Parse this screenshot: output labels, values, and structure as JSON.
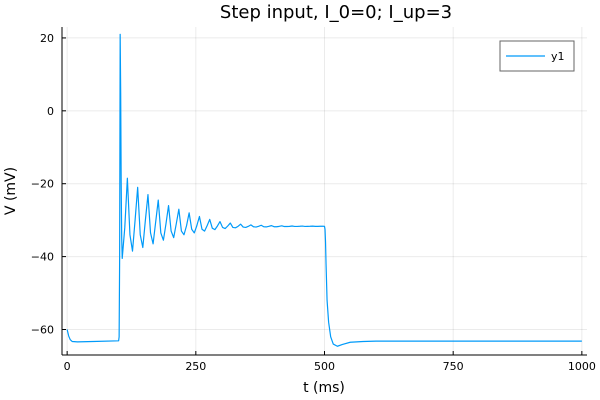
{
  "chart_data": {
    "type": "line",
    "title": "Step input, I_0=0; I_up=3",
    "xlabel": "t (ms)",
    "ylabel": "V (mV)",
    "xlim": [
      -10,
      1010
    ],
    "ylim": [
      -67,
      23
    ],
    "xticks": [
      0,
      250,
      500,
      750,
      1000
    ],
    "xtick_labels": [
      "0",
      "250",
      "500",
      "750",
      "1000"
    ],
    "yticks": [
      -60,
      -40,
      -20,
      0,
      20
    ],
    "ytick_labels": [
      "−60",
      "−40",
      "−20",
      "0",
      "20"
    ],
    "grid": true,
    "legend": {
      "position": "top-right",
      "entries": [
        "y1"
      ]
    },
    "series": [
      {
        "name": "y1",
        "color": "#009af9",
        "points": [
          [
            0,
            -60
          ],
          [
            3,
            -61.8
          ],
          [
            6,
            -62.8
          ],
          [
            10,
            -63.3
          ],
          [
            20,
            -63.4
          ],
          [
            50,
            -63.3
          ],
          [
            100,
            -63.1
          ],
          [
            101,
            -62
          ],
          [
            102,
            -40
          ],
          [
            103,
            21
          ],
          [
            104,
            5
          ],
          [
            105,
            -20
          ],
          [
            106,
            -35
          ],
          [
            107,
            -40.5
          ],
          [
            112,
            -32
          ],
          [
            117,
            -18.5
          ],
          [
            122,
            -34
          ],
          [
            127,
            -38.5
          ],
          [
            132,
            -30
          ],
          [
            137,
            -21
          ],
          [
            142,
            -34
          ],
          [
            147,
            -37.5
          ],
          [
            152,
            -30
          ],
          [
            157,
            -23
          ],
          [
            162,
            -33.5
          ],
          [
            167,
            -36.5
          ],
          [
            172,
            -30.5
          ],
          [
            177,
            -24.5
          ],
          [
            182,
            -33.5
          ],
          [
            187,
            -35.5
          ],
          [
            192,
            -31
          ],
          [
            197,
            -26
          ],
          [
            202,
            -33
          ],
          [
            207,
            -34.8
          ],
          [
            212,
            -31
          ],
          [
            217,
            -27
          ],
          [
            222,
            -33
          ],
          [
            227,
            -34
          ],
          [
            232,
            -31.5
          ],
          [
            237,
            -28
          ],
          [
            242,
            -32.5
          ],
          [
            247,
            -33.5
          ],
          [
            252,
            -31.5
          ],
          [
            257,
            -29
          ],
          [
            262,
            -32.5
          ],
          [
            267,
            -33
          ],
          [
            272,
            -31.5
          ],
          [
            277,
            -29.8
          ],
          [
            282,
            -32.2
          ],
          [
            287,
            -32.6
          ],
          [
            292,
            -31.6
          ],
          [
            297,
            -30.4
          ],
          [
            302,
            -32
          ],
          [
            307,
            -32.3
          ],
          [
            312,
            -31.6
          ],
          [
            317,
            -30.8
          ],
          [
            322,
            -32
          ],
          [
            327,
            -32.1
          ],
          [
            332,
            -31.7
          ],
          [
            337,
            -31.1
          ],
          [
            342,
            -31.9
          ],
          [
            347,
            -32
          ],
          [
            352,
            -31.7
          ],
          [
            357,
            -31.3
          ],
          [
            362,
            -31.8
          ],
          [
            367,
            -31.9
          ],
          [
            372,
            -31.7
          ],
          [
            377,
            -31.4
          ],
          [
            382,
            -31.8
          ],
          [
            387,
            -31.85
          ],
          [
            392,
            -31.7
          ],
          [
            397,
            -31.5
          ],
          [
            402,
            -31.8
          ],
          [
            407,
            -31.8
          ],
          [
            412,
            -31.7
          ],
          [
            417,
            -31.55
          ],
          [
            422,
            -31.75
          ],
          [
            427,
            -31.75
          ],
          [
            432,
            -31.7
          ],
          [
            437,
            -31.6
          ],
          [
            442,
            -31.72
          ],
          [
            447,
            -31.72
          ],
          [
            452,
            -31.68
          ],
          [
            457,
            -31.62
          ],
          [
            462,
            -31.72
          ],
          [
            467,
            -31.7
          ],
          [
            472,
            -31.68
          ],
          [
            477,
            -31.64
          ],
          [
            482,
            -31.7
          ],
          [
            487,
            -31.7
          ],
          [
            492,
            -31.68
          ],
          [
            497,
            -31.66
          ],
          [
            500,
            -31.7
          ],
          [
            501,
            -32.5
          ],
          [
            502,
            -36
          ],
          [
            503,
            -42
          ],
          [
            505,
            -52
          ],
          [
            508,
            -58
          ],
          [
            512,
            -62
          ],
          [
            517,
            -64
          ],
          [
            525,
            -64.6
          ],
          [
            535,
            -64.1
          ],
          [
            550,
            -63.5
          ],
          [
            575,
            -63.3
          ],
          [
            600,
            -63.2
          ],
          [
            700,
            -63.2
          ],
          [
            800,
            -63.2
          ],
          [
            900,
            -63.2
          ],
          [
            1000,
            -63.2
          ]
        ]
      }
    ]
  }
}
